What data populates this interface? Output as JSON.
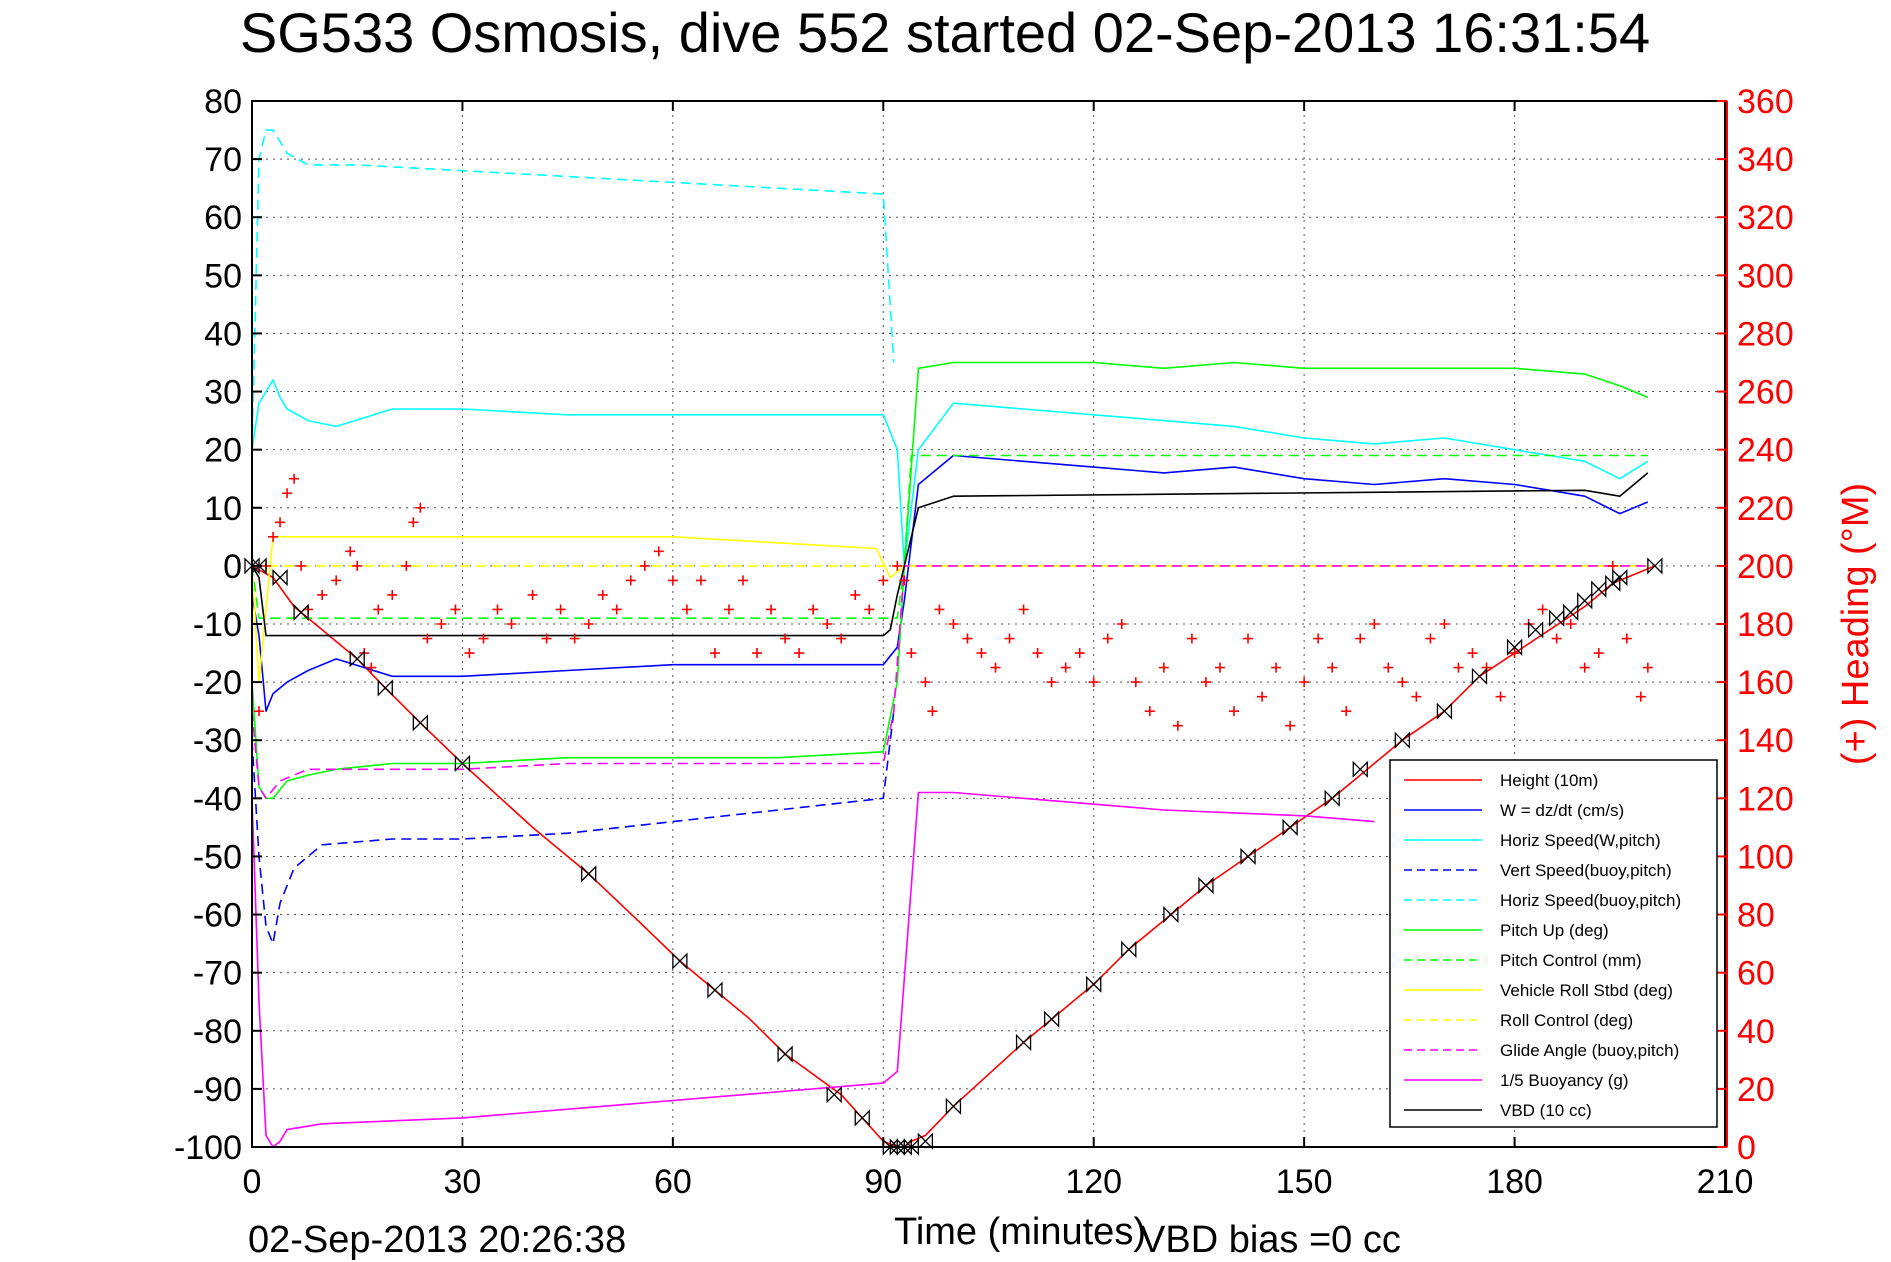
{
  "chart_data": {
    "type": "line",
    "title": "SG533 Osmosis, dive 552 started 02-Sep-2013 16:31:54",
    "xlabel": "Time (minutes)",
    "ylabel_right": "(+) Heading (°M)",
    "xlim": [
      0,
      210
    ],
    "ylim_left": [
      -100,
      80
    ],
    "ylim_right": [
      0,
      360
    ],
    "x_ticks": [
      "0",
      "30",
      "60",
      "90",
      "120",
      "150",
      "180",
      "210"
    ],
    "y_ticks_left": [
      "80",
      "70",
      "60",
      "50",
      "40",
      "30",
      "20",
      "10",
      "0",
      "-10",
      "-20",
      "-30",
      "-40",
      "-50",
      "-60",
      "-70",
      "-80",
      "-90",
      "-100"
    ],
    "y_ticks_right": [
      "360",
      "340",
      "320",
      "300",
      "280",
      "260",
      "240",
      "220",
      "200",
      "180",
      "160",
      "140",
      "120",
      "100",
      "80",
      "60",
      "40",
      "20",
      "0"
    ],
    "grid": true,
    "legend_position": "lower-right",
    "footer_left": "02-Sep-2013 20:26:38",
    "footer_right": "VBD bias =0 cc",
    "colors": {
      "red": "#ff0000",
      "blue": "#0000ff",
      "cyan": "#00ffff",
      "green": "#00ff00",
      "yellow": "#ffff00",
      "magenta": "#ff00ff",
      "black": "#000000"
    },
    "series": [
      {
        "name": "Height (10m)",
        "color": "#ff0000",
        "style": "solid",
        "x": [
          0,
          3,
          6,
          10,
          15,
          19,
          24,
          30,
          40,
          48,
          55,
          61,
          66,
          71,
          76,
          84,
          87,
          90,
          92,
          93,
          94,
          96,
          100,
          110,
          114,
          120,
          125,
          131,
          136,
          142,
          148,
          154,
          158,
          164,
          170,
          175,
          180,
          185,
          190,
          194,
          200
        ],
        "y": [
          0,
          -2,
          -7,
          -11,
          -16,
          -21,
          -27,
          -34,
          -45,
          -53,
          -61,
          -68,
          -73,
          -78,
          -84,
          -91,
          -95,
          -99,
          -100,
          -100,
          -99,
          -98,
          -93,
          -82,
          -78,
          -72,
          -66,
          -60,
          -55,
          -50,
          -45,
          -40,
          -36,
          -30,
          -25,
          -19,
          -15,
          -11,
          -7,
          -3,
          0
        ]
      },
      {
        "name": "W = dz/dt (cm/s)",
        "color": "#0000ff",
        "style": "solid",
        "x": [
          0,
          1,
          2,
          3,
          5,
          8,
          12,
          20,
          30,
          45,
          60,
          75,
          90,
          92,
          93,
          95,
          100,
          110,
          120,
          130,
          140,
          150,
          160,
          170,
          180,
          185,
          190,
          195,
          199
        ],
        "y": [
          -5,
          -12,
          -25,
          -22,
          -20,
          -18,
          -16,
          -19,
          -19,
          -18,
          -17,
          -17,
          -17,
          -14,
          -6,
          14,
          19,
          18,
          17,
          16,
          17,
          15,
          14,
          15,
          14,
          13,
          12,
          9,
          11
        ]
      },
      {
        "name": "Horiz Speed(W,pitch)",
        "color": "#00ffff",
        "style": "solid",
        "x": [
          0,
          1,
          2,
          3,
          4,
          5,
          8,
          12,
          20,
          30,
          45,
          60,
          75,
          90,
          92,
          93,
          95,
          100,
          110,
          120,
          130,
          140,
          150,
          160,
          170,
          180,
          185,
          190,
          195,
          199
        ],
        "y": [
          20,
          28,
          30,
          32,
          29,
          27,
          25,
          24,
          27,
          27,
          26,
          26,
          26,
          26,
          20,
          0,
          20,
          28,
          27,
          26,
          25,
          24,
          22,
          21,
          22,
          20,
          19,
          18,
          15,
          18
        ]
      },
      {
        "name": "Vert Speed(buoy,pitch)",
        "color": "#0000ff",
        "style": "dashed",
        "x": [
          0,
          1,
          2,
          3,
          4,
          6,
          10,
          20,
          30,
          45,
          60,
          75,
          90,
          91.5
        ],
        "y": [
          -30,
          -50,
          -62,
          -65,
          -58,
          -52,
          -48,
          -47,
          -47,
          -46,
          -44,
          -42,
          -40,
          -25
        ]
      },
      {
        "name": "Horiz Speed(buoy,pitch)",
        "color": "#00ffff",
        "style": "dashed",
        "x": [
          0,
          1,
          2,
          3,
          4,
          5,
          8,
          15,
          30,
          45,
          60,
          75,
          90,
          91.5
        ],
        "y": [
          20,
          70,
          75,
          75,
          73,
          71,
          69,
          69,
          68,
          67,
          66,
          65,
          64,
          35
        ]
      },
      {
        "name": "Pitch Up (deg)",
        "color": "#00ff00",
        "style": "solid",
        "x": [
          0,
          1,
          2,
          3,
          5,
          8,
          12,
          20,
          30,
          45,
          60,
          75,
          90,
          92,
          93,
          95,
          100,
          110,
          120,
          130,
          140,
          150,
          160,
          170,
          180,
          190,
          195,
          199
        ],
        "y": [
          -20,
          -38,
          -40,
          -40,
          -37,
          -36,
          -35,
          -34,
          -34,
          -33,
          -33,
          -33,
          -32,
          -20,
          0,
          34,
          35,
          35,
          35,
          34,
          35,
          34,
          34,
          34,
          34,
          33,
          31,
          29
        ]
      },
      {
        "name": "Pitch Control (mm)",
        "color": "#00ff00",
        "style": "dashed",
        "x": [
          0,
          1,
          2,
          92,
          93,
          94,
          199
        ],
        "y": [
          0,
          -9,
          -9,
          -9,
          0,
          19,
          19
        ]
      },
      {
        "name": "Vehicle Roll Stbd (deg)",
        "color": "#ffff00",
        "style": "solid",
        "x": [
          0,
          1,
          3,
          10,
          30,
          60,
          89,
          91,
          93,
          95,
          110,
          150,
          190,
          199
        ],
        "y": [
          0,
          -20,
          5,
          5,
          5,
          5,
          3,
          -2,
          0,
          0,
          0,
          0,
          0,
          0
        ]
      },
      {
        "name": "Roll Control (deg)",
        "color": "#ffff00",
        "style": "dashed",
        "x": [
          0,
          90,
          93,
          199
        ],
        "y": [
          0,
          0,
          0,
          0
        ]
      },
      {
        "name": "Glide Angle (buoy,pitch)",
        "color": "#ff00ff",
        "style": "dashed",
        "x": [
          0,
          1,
          2,
          4,
          8,
          15,
          30,
          45,
          60,
          75,
          90,
          91.5,
          93,
          95,
          199
        ],
        "y": [
          -25,
          -38,
          -40,
          -37,
          -35,
          -35,
          -35,
          -34,
          -34,
          -34,
          -34,
          -25,
          0,
          0,
          0
        ]
      },
      {
        "name": "1/5 Buoyancy (g)",
        "color": "#ff00ff",
        "style": "solid",
        "x": [
          0,
          1,
          2,
          3,
          4,
          5,
          10,
          30,
          50,
          70,
          90,
          92,
          95,
          100,
          110,
          130,
          150,
          160
        ],
        "y": [
          -40,
          -75,
          -98,
          -100,
          -99,
          -97,
          -96,
          -95,
          -93,
          -91,
          -89,
          -87,
          -39,
          -39,
          -40,
          -42,
          -43,
          -44
        ]
      },
      {
        "name": "VBD (10 cc)",
        "color": "#000000",
        "style": "solid",
        "x": [
          0,
          1,
          2,
          90,
          91,
          92,
          93,
          95,
          100,
          190,
          195,
          199
        ],
        "y": [
          0,
          -2,
          -12,
          -12,
          -11,
          -5,
          0,
          10,
          12,
          13,
          12,
          16
        ]
      }
    ],
    "heading_markers": {
      "name": "(+) Heading",
      "color": "#ff0000",
      "axis": "right",
      "marker": "+",
      "x": [
        1,
        2,
        3,
        4,
        5,
        6,
        7,
        8,
        10,
        12,
        14,
        15,
        16,
        17,
        18,
        20,
        22,
        23,
        24,
        25,
        27,
        29,
        31,
        33,
        35,
        37,
        40,
        42,
        44,
        46,
        48,
        50,
        52,
        54,
        56,
        58,
        60,
        62,
        64,
        66,
        68,
        70,
        72,
        74,
        76,
        78,
        80,
        82,
        84,
        86,
        88,
        90,
        92,
        93,
        94,
        96,
        97,
        98,
        100,
        102,
        104,
        106,
        108,
        110,
        112,
        114,
        116,
        118,
        120,
        122,
        124,
        126,
        128,
        130,
        132,
        134,
        136,
        138,
        140,
        142,
        144,
        146,
        148,
        150,
        152,
        154,
        156,
        158,
        160,
        162,
        164,
        166,
        168,
        170,
        172,
        174,
        176,
        178,
        180,
        182,
        184,
        186,
        188,
        190,
        192,
        194,
        196,
        198,
        199
      ],
      "y": [
        150,
        200,
        210,
        215,
        225,
        230,
        200,
        185,
        190,
        195,
        205,
        200,
        170,
        165,
        185,
        190,
        200,
        215,
        220,
        175,
        180,
        185,
        170,
        175,
        185,
        180,
        190,
        175,
        185,
        175,
        180,
        190,
        185,
        195,
        200,
        205,
        195,
        185,
        195,
        170,
        185,
        195,
        170,
        185,
        175,
        170,
        185,
        180,
        175,
        190,
        185,
        195,
        200,
        195,
        170,
        160,
        150,
        185,
        180,
        175,
        170,
        165,
        175,
        185,
        170,
        160,
        165,
        170,
        160,
        175,
        180,
        160,
        150,
        165,
        145,
        175,
        160,
        165,
        150,
        175,
        155,
        165,
        145,
        160,
        175,
        165,
        150,
        175,
        180,
        165,
        160,
        155,
        175,
        180,
        165,
        170,
        165,
        155,
        170,
        180,
        185,
        175,
        180,
        165,
        170,
        200,
        175,
        155,
        165
      ]
    },
    "depth_markers": {
      "color": "#000000",
      "x": [
        0,
        1,
        4,
        7,
        15,
        19,
        24,
        30,
        48,
        61,
        66,
        76,
        83,
        87,
        91,
        92,
        93,
        94,
        96,
        100,
        110,
        114,
        120,
        125,
        131,
        136,
        142,
        148,
        154,
        158,
        164,
        170,
        175,
        180,
        183,
        186,
        188,
        190,
        192,
        194,
        195,
        200
      ],
      "y": [
        0,
        0,
        -2,
        -8,
        -16,
        -21,
        -27,
        -34,
        -53,
        -68,
        -73,
        -84,
        -91,
        -95,
        -100,
        -100,
        -100,
        -100,
        -99,
        -93,
        -82,
        -78,
        -72,
        -66,
        -60,
        -55,
        -50,
        -45,
        -40,
        -35,
        -30,
        -25,
        -19,
        -14,
        -11,
        -9,
        -8,
        -6,
        -4,
        -3,
        -2,
        0
      ]
    }
  }
}
